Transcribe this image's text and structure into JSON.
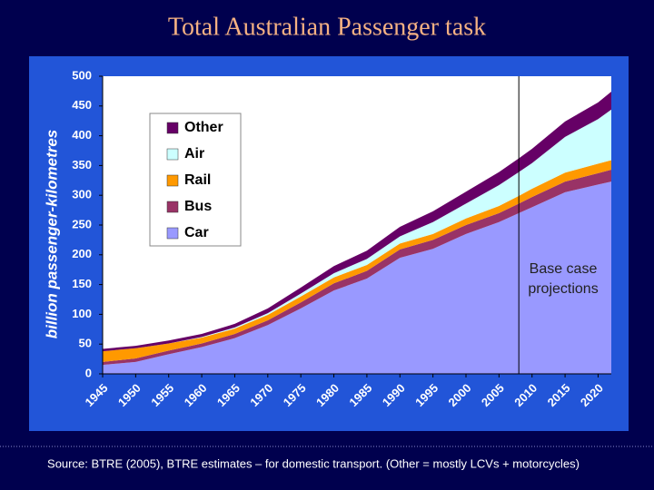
{
  "chart_data": {
    "type": "stacked-area",
    "title": "Total Australian Passenger task",
    "y_label": "billion passenger-kilometres",
    "annotation": [
      "Base case",
      "projections"
    ],
    "projection_start": 2008,
    "source": "Source: BTRE (2005), BTRE estimates – for domestic transport.  (Other = mostly LCVs + motorcycles)",
    "x": [
      1945,
      1950,
      1955,
      1960,
      1965,
      1970,
      1975,
      1980,
      1985,
      1990,
      1995,
      2000,
      2005,
      2008,
      2010,
      2015,
      2020,
      2022
    ],
    "series": [
      {
        "name": "Car",
        "color": "#9999ff",
        "values": [
          15,
          20,
          33,
          45,
          60,
          82,
          110,
          140,
          160,
          195,
          210,
          235,
          255,
          270,
          280,
          305,
          318,
          323
        ]
      },
      {
        "name": "Bus",
        "color": "#993366",
        "values": [
          5,
          6,
          6,
          6,
          7,
          8,
          10,
          12,
          13,
          14,
          15,
          15,
          15,
          16,
          17,
          18,
          19,
          20
        ]
      },
      {
        "name": "Rail",
        "color": "#ff9900",
        "values": [
          18,
          17,
          12,
          10,
          9,
          9,
          10,
          10,
          10,
          10,
          10,
          11,
          12,
          13,
          14,
          15,
          16,
          16
        ]
      },
      {
        "name": "Air",
        "color": "#ccffff",
        "values": [
          0,
          0,
          0,
          1,
          2,
          3,
          5,
          7,
          10,
          12,
          20,
          25,
          35,
          40,
          43,
          60,
          75,
          85
        ]
      },
      {
        "name": "Other",
        "color": "#660066",
        "values": [
          4,
          4,
          5,
          5,
          6,
          8,
          10,
          12,
          14,
          16,
          18,
          20,
          22,
          23,
          24,
          26,
          28,
          30
        ]
      }
    ],
    "xlim": [
      1945,
      2022
    ],
    "xticks": [
      1945,
      1950,
      1955,
      1960,
      1965,
      1970,
      1975,
      1980,
      1985,
      1990,
      1995,
      2000,
      2005,
      2010,
      2015,
      2020
    ],
    "ylim": [
      0,
      500
    ],
    "yticks": [
      0,
      50,
      100,
      150,
      200,
      250,
      300,
      350,
      400,
      450,
      500
    ],
    "grid": false
  }
}
